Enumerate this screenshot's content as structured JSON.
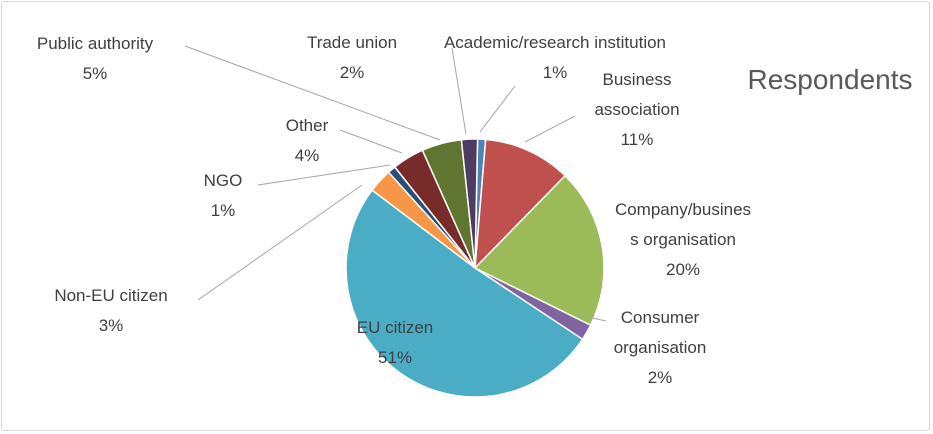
{
  "chart_data": {
    "type": "pie",
    "title": "Respondents",
    "categories": [
      "Academic/research institution",
      "Business association",
      "Company/business organisation",
      "Consumer organisation",
      "EU citizen",
      "Non-EU citizen",
      "NGO",
      "Other",
      "Public authority",
      "Trade union"
    ],
    "values": [
      1,
      11,
      20,
      2,
      51,
      3,
      1,
      4,
      5,
      2
    ],
    "value_labels": [
      "1%",
      "11%",
      "20%",
      "2%",
      "51%",
      "3%",
      "1%",
      "4%",
      "5%",
      "2%"
    ],
    "colors": [
      "#4f81bd",
      "#c0504d",
      "#9bbb59",
      "#8064a2",
      "#4bacc6",
      "#f79646",
      "#2c4d75",
      "#772c2a",
      "#5f7530",
      "#4d3b62"
    ]
  }
}
